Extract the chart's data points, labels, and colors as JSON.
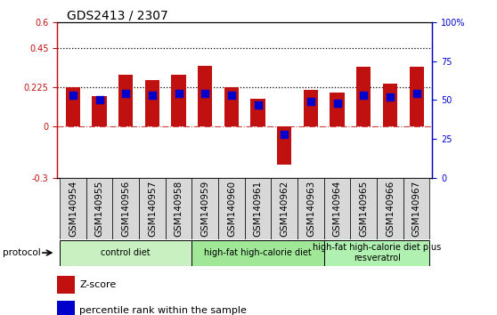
{
  "title": "GDS2413 / 2307",
  "samples": [
    "GSM140954",
    "GSM140955",
    "GSM140956",
    "GSM140957",
    "GSM140958",
    "GSM140959",
    "GSM140960",
    "GSM140961",
    "GSM140962",
    "GSM140963",
    "GSM140964",
    "GSM140965",
    "GSM140966",
    "GSM140967"
  ],
  "z_scores": [
    0.225,
    0.175,
    0.295,
    0.265,
    0.295,
    0.345,
    0.225,
    0.155,
    -0.225,
    0.21,
    0.195,
    0.34,
    0.245,
    0.34
  ],
  "pct_ranks": [
    53,
    50,
    54,
    53,
    54,
    54,
    53,
    47,
    28,
    49,
    48,
    53,
    52,
    54
  ],
  "groups": [
    {
      "label": "control diet",
      "start": 0,
      "end": 5,
      "color": "#c8f0c0"
    },
    {
      "label": "high-fat high-calorie diet",
      "start": 5,
      "end": 10,
      "color": "#a0e898"
    },
    {
      "label": "high-fat high-calorie diet plus\nresveratrol",
      "start": 10,
      "end": 14,
      "color": "#b0f0b0"
    }
  ],
  "ylim": [
    -0.3,
    0.6
  ],
  "y2lim": [
    0,
    100
  ],
  "yticks_left": [
    -0.3,
    0.0,
    0.225,
    0.45,
    0.6
  ],
  "yticks_left_labels": [
    "-0.3",
    "0",
    "0.225",
    "0.45",
    "0.6"
  ],
  "yticks_right": [
    0,
    25,
    50,
    75,
    100
  ],
  "yticks_right_labels": [
    "0",
    "25",
    "50",
    "75",
    "100%"
  ],
  "hline_225": 0.225,
  "hline_45": 0.45,
  "hline_0": 0.0,
  "bar_color": "#c01010",
  "dot_color": "#0000cc",
  "bar_width": 0.55,
  "legend_zscore": "Z-score",
  "legend_pct": "percentile rank within the sample",
  "protocol_label": "protocol",
  "cell_color": "#d8d8d8",
  "title_fontsize": 10,
  "tick_fontsize": 7,
  "label_fontsize": 7.5,
  "group_fontsize": 7
}
